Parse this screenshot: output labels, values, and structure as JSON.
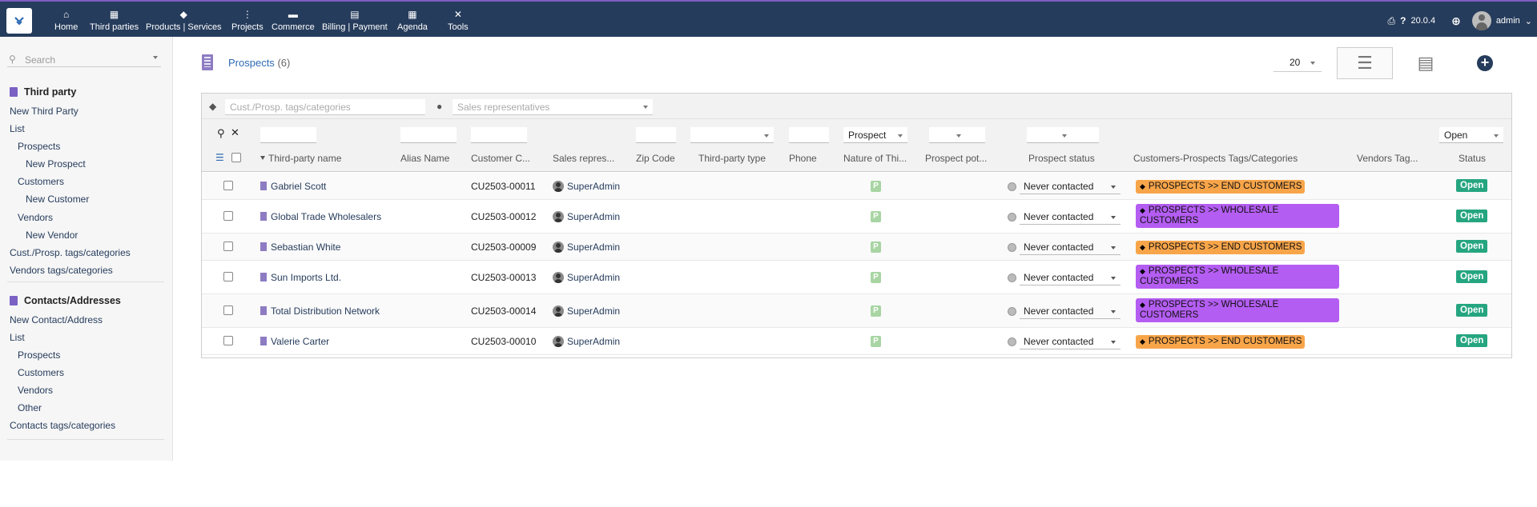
{
  "topbar": {
    "nav": [
      {
        "label": "Home",
        "icon": "home-icon",
        "glyph": "⌂"
      },
      {
        "label": "Third parties",
        "icon": "building-icon",
        "glyph": "▦"
      },
      {
        "label": "Products | Services",
        "icon": "cube-icon",
        "glyph": "◆"
      },
      {
        "label": "Projects",
        "icon": "project-icon",
        "glyph": "⋮"
      },
      {
        "label": "Commerce",
        "icon": "briefcase-icon",
        "glyph": "▬"
      },
      {
        "label": "Billing | Payment",
        "icon": "invoice-icon",
        "glyph": "▤"
      },
      {
        "label": "Agenda",
        "icon": "calendar-icon",
        "glyph": "▦"
      },
      {
        "label": "Tools",
        "icon": "wrench-icon",
        "glyph": "✕"
      }
    ],
    "version": "20.0.4",
    "user": "admin"
  },
  "sidebar": {
    "search_placeholder": "Search",
    "third_party": {
      "title": "Third party",
      "items": [
        "New Third Party",
        "List",
        "Prospects",
        "New Prospect",
        "Customers",
        "New Customer",
        "Vendors",
        "New Vendor",
        "Cust./Prosp. tags/categories",
        "Vendors tags/categories"
      ]
    },
    "contacts": {
      "title": "Contacts/Addresses",
      "items": [
        "New Contact/Address",
        "List",
        "Prospects",
        "Customers",
        "Vendors",
        "Other",
        "Contacts tags/categories"
      ]
    }
  },
  "page": {
    "title": "Prospects",
    "count": "(6)",
    "limit": "20"
  },
  "filters": {
    "tags_placeholder": "Cust./Prosp. tags/categories",
    "sales_placeholder": "Sales representatives",
    "nature_value": "Prospect",
    "status_value": "Open"
  },
  "columns": {
    "name": "Third-party name",
    "alias": "Alias Name",
    "code": "Customer C...",
    "sales": "Sales repres...",
    "zip": "Zip Code",
    "type": "Third-party type",
    "phone": "Phone",
    "nature": "Nature of Thi...",
    "potential": "Prospect pot...",
    "pstatus": "Prospect status",
    "ctags": "Customers-Prospects Tags/Categories",
    "vtags": "Vendors Tag...",
    "status": "Status"
  },
  "rows": [
    {
      "name": "Gabriel Scott",
      "code": "CU2503-00011",
      "sales": "SuperAdmin",
      "nature": "P",
      "pstatus": "Never contacted",
      "tag": "PROSPECTS >> END CUSTOMERS",
      "tag_kind": "end",
      "status": "Open"
    },
    {
      "name": "Global Trade Wholesalers",
      "code": "CU2503-00012",
      "sales": "SuperAdmin",
      "nature": "P",
      "pstatus": "Never contacted",
      "tag": "PROSPECTS >> WHOLESALE CUSTOMERS",
      "tag_kind": "whole",
      "status": "Open"
    },
    {
      "name": "Sebastian White",
      "code": "CU2503-00009",
      "sales": "SuperAdmin",
      "nature": "P",
      "pstatus": "Never contacted",
      "tag": "PROSPECTS >> END CUSTOMERS",
      "tag_kind": "end",
      "status": "Open"
    },
    {
      "name": "Sun Imports Ltd.",
      "code": "CU2503-00013",
      "sales": "SuperAdmin",
      "nature": "P",
      "pstatus": "Never contacted",
      "tag": "PROSPECTS >> WHOLESALE CUSTOMERS",
      "tag_kind": "whole",
      "status": "Open"
    },
    {
      "name": "Total Distribution Network",
      "code": "CU2503-00014",
      "sales": "SuperAdmin",
      "nature": "P",
      "pstatus": "Never contacted",
      "tag": "PROSPECTS >> WHOLESALE CUSTOMERS",
      "tag_kind": "whole",
      "status": "Open"
    },
    {
      "name": "Valerie Carter",
      "code": "CU2503-00010",
      "sales": "SuperAdmin",
      "nature": "P",
      "pstatus": "Never contacted",
      "tag": "PROSPECTS >> END CUSTOMERS",
      "tag_kind": "end",
      "status": "Open"
    }
  ],
  "colors": {
    "topbar": "#263c5c",
    "accent": "#7d5ec3",
    "tag_end": "#f8a54a",
    "tag_wholesale": "#b45df2",
    "status_open": "#25a580"
  }
}
